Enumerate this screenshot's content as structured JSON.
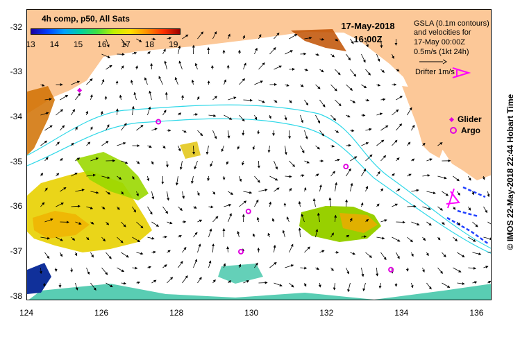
{
  "colorbar": {
    "title": "4h comp, p50, All Sats",
    "ticks": [
      "13",
      "14",
      "15",
      "16",
      "17",
      "18",
      "19"
    ]
  },
  "timestamp": {
    "date": "17-May-2018",
    "time": "16:00Z"
  },
  "info_text": {
    "line1": "GSLA (0.1m contours)",
    "line2": "and velocities for",
    "line3": "17-May 00:00Z",
    "line4": "0.5m/s (1kt 24h)",
    "drifter": "Drifter 1m/s"
  },
  "legend": {
    "glider": "Glider",
    "argo": "Argo"
  },
  "axes": {
    "y_labels": [
      "-32",
      "-33",
      "-34",
      "-35",
      "-36",
      "-37",
      "-38"
    ],
    "x_labels": [
      "124",
      "126",
      "128",
      "130",
      "132",
      "134",
      "136"
    ],
    "lon_range": [
      124,
      136.4
    ],
    "lat_range": [
      -38.1,
      -31.6
    ]
  },
  "credit": "© IMOS 22-May-2018 22:44 Hobart Time",
  "colors": {
    "land": "#fcc898",
    "argo": "#e000e0",
    "contour": "#30d8e8",
    "drifter": "#ff00ff"
  },
  "argo_floats": [
    {
      "lon": 127.5,
      "lat": -34.1
    },
    {
      "lon": 129.9,
      "lat": -36.1
    },
    {
      "lon": 129.7,
      "lat": -37.0
    },
    {
      "lon": 132.5,
      "lat": -35.1
    },
    {
      "lon": 133.7,
      "lat": -37.4
    }
  ],
  "glider": {
    "lon": 125.4,
    "lat": -33.4
  }
}
